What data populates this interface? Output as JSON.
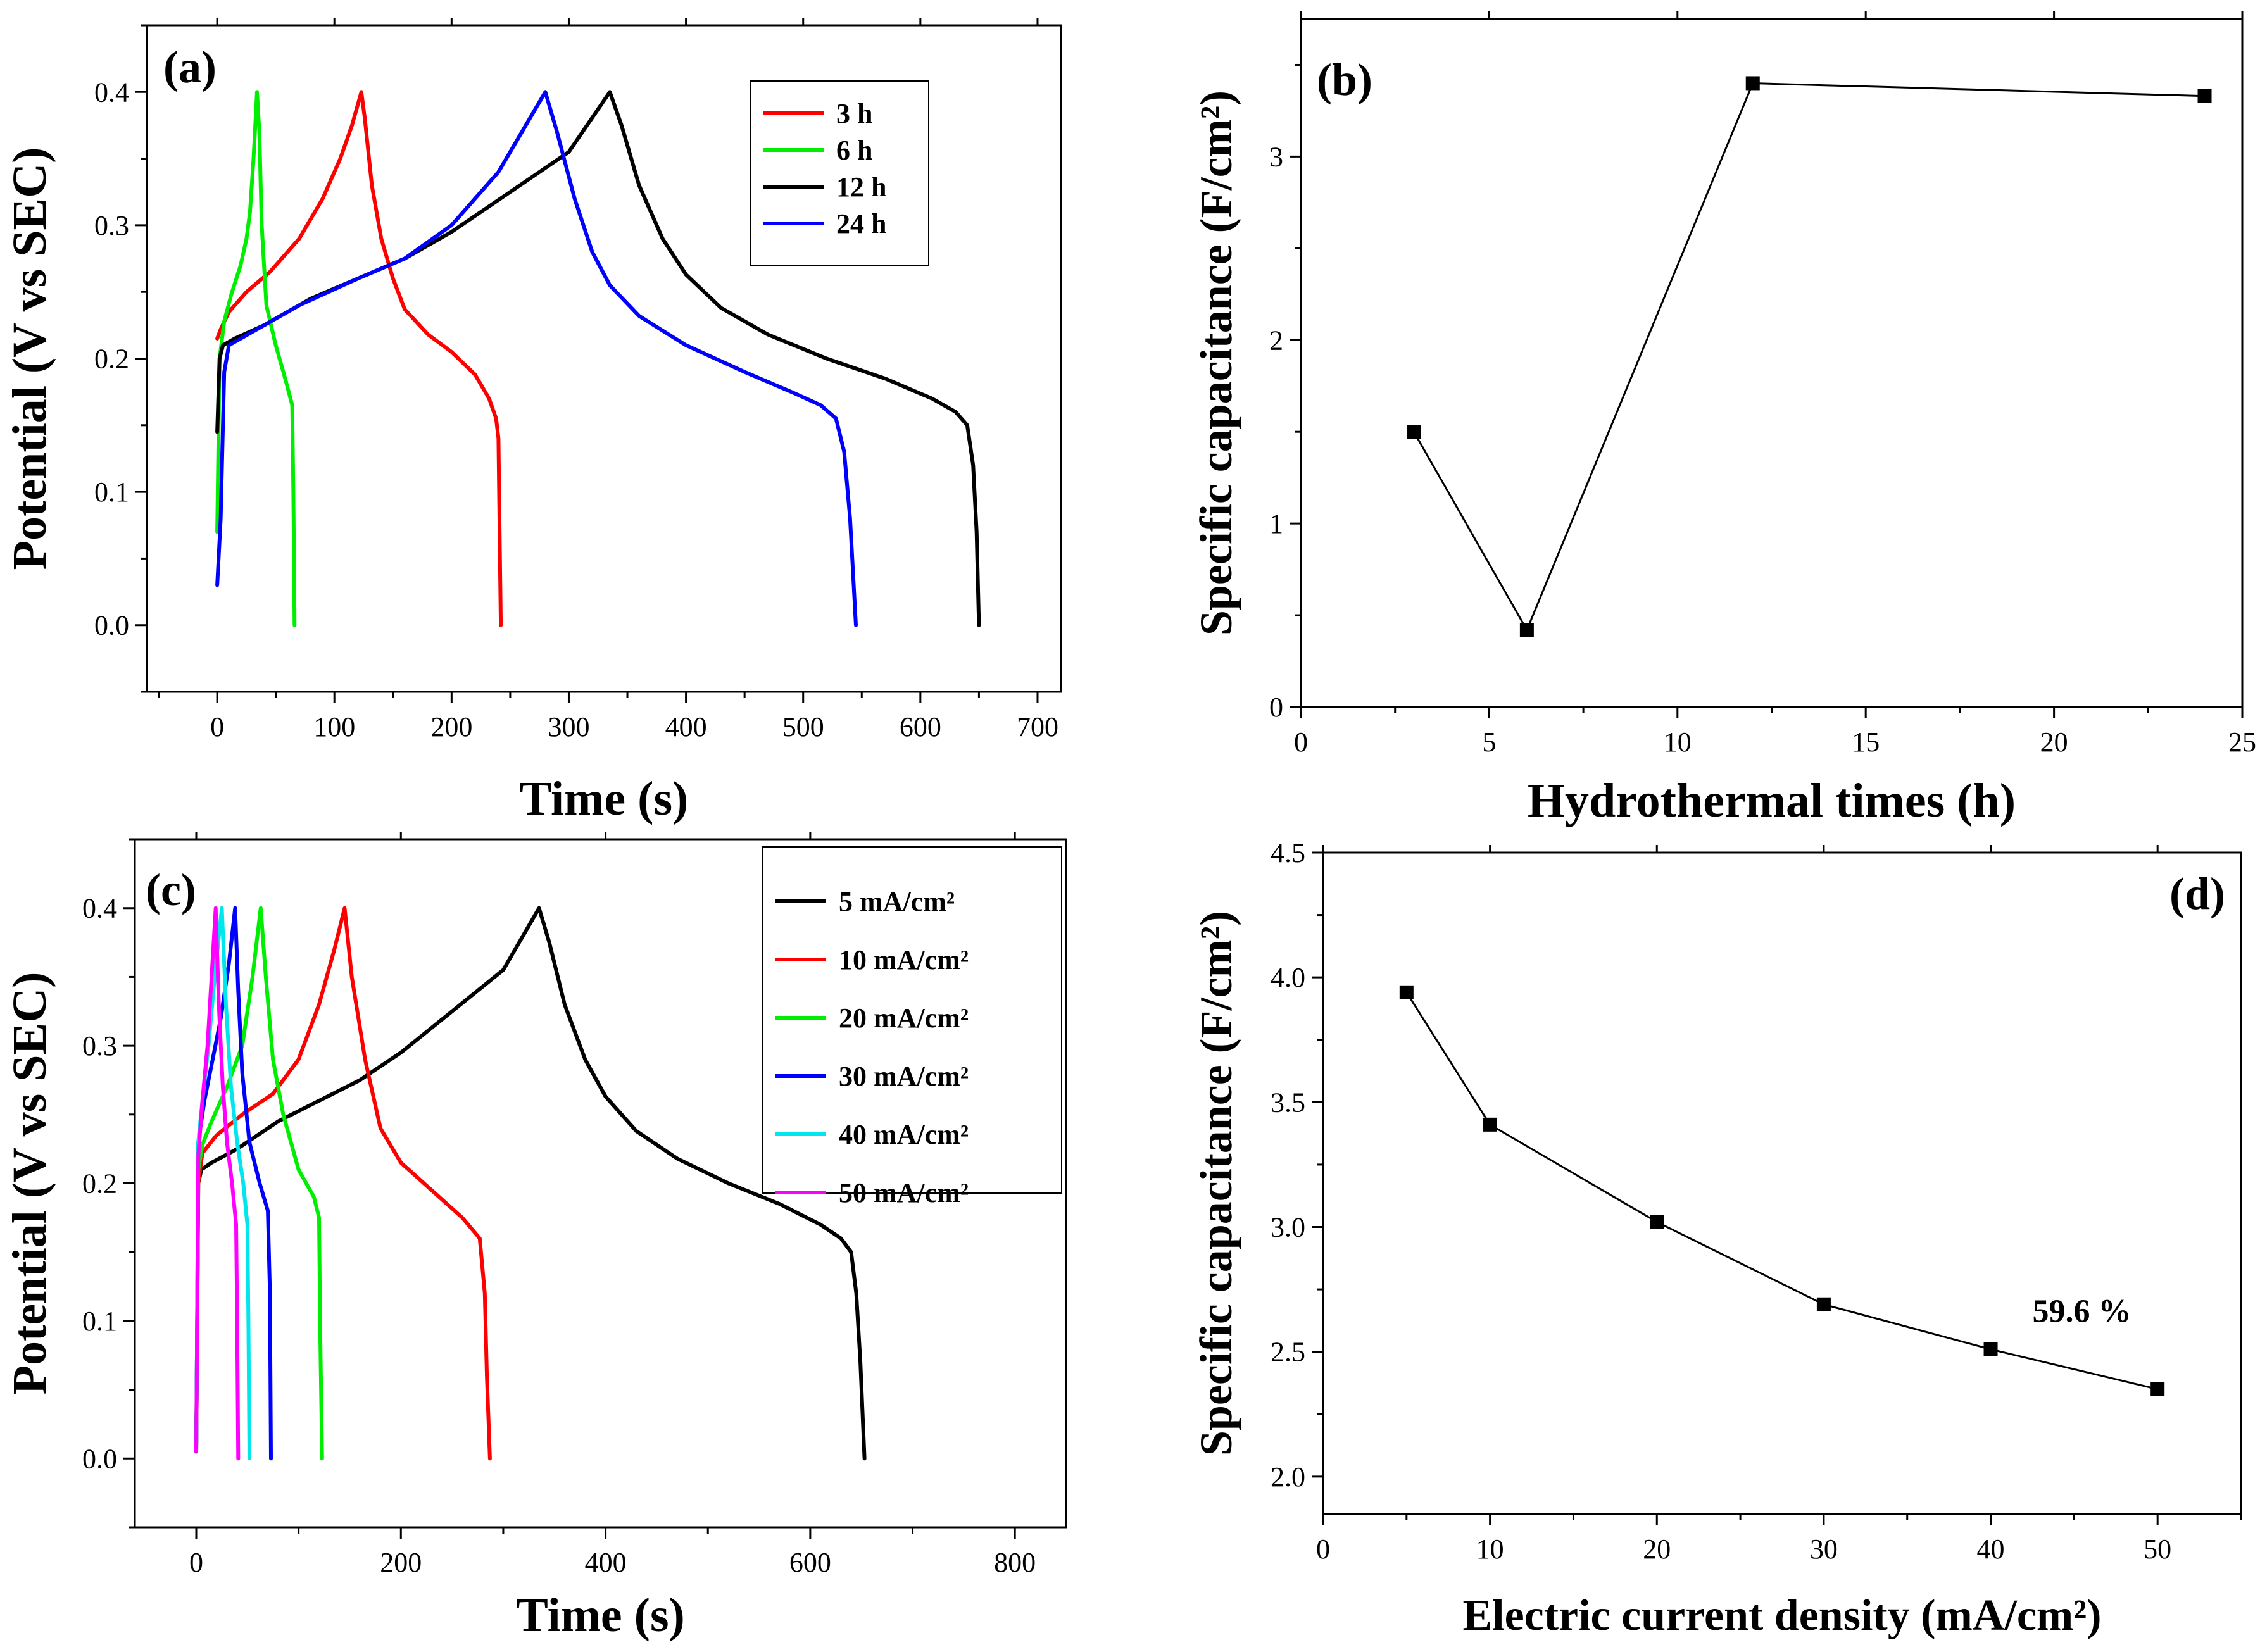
{
  "chart_data": [
    {
      "panel": "(a)",
      "type": "line",
      "xlabel": "Time (s)",
      "ylabel": "Potential (V vs SEC)",
      "xlim": [
        -60,
        720
      ],
      "ylim": [
        -0.05,
        0.45
      ],
      "xticks": [
        0,
        100,
        200,
        300,
        400,
        500,
        600,
        700
      ],
      "yticks": [
        0.0,
        0.1,
        0.2,
        0.3,
        0.4
      ],
      "legend_position": "top-right",
      "series": [
        {
          "name": "3 h",
          "color": "#ff0000",
          "points": [
            [
              0,
              0.215
            ],
            [
              3,
              0.222
            ],
            [
              10,
              0.235
            ],
            [
              25,
              0.25
            ],
            [
              45,
              0.265
            ],
            [
              70,
              0.29
            ],
            [
              90,
              0.32
            ],
            [
              105,
              0.35
            ],
            [
              115,
              0.375
            ],
            [
              123,
              0.4
            ],
            [
              126,
              0.38
            ],
            [
              132,
              0.33
            ],
            [
              140,
              0.29
            ],
            [
              150,
              0.26
            ],
            [
              160,
              0.237
            ],
            [
              180,
              0.218
            ],
            [
              200,
              0.205
            ],
            [
              220,
              0.188
            ],
            [
              232,
              0.17
            ],
            [
              238,
              0.155
            ],
            [
              240,
              0.14
            ],
            [
              241,
              0.07
            ],
            [
              242,
              0.0
            ]
          ]
        },
        {
          "name": "6 h",
          "color": "#00ee00",
          "points": [
            [
              0,
              0.07
            ],
            [
              2,
              0.2
            ],
            [
              6,
              0.228
            ],
            [
              12,
              0.248
            ],
            [
              20,
              0.27
            ],
            [
              25,
              0.29
            ],
            [
              28,
              0.31
            ],
            [
              31,
              0.35
            ],
            [
              34,
              0.4
            ],
            [
              36,
              0.37
            ],
            [
              38,
              0.3
            ],
            [
              42,
              0.24
            ],
            [
              50,
              0.21
            ],
            [
              58,
              0.185
            ],
            [
              64,
              0.165
            ],
            [
              65,
              0.1
            ],
            [
              66,
              0.0
            ]
          ]
        },
        {
          "name": "12 h",
          "color": "#000000",
          "points": [
            [
              0,
              0.145
            ],
            [
              2,
              0.2
            ],
            [
              5,
              0.21
            ],
            [
              15,
              0.215
            ],
            [
              40,
              0.225
            ],
            [
              80,
              0.245
            ],
            [
              120,
              0.26
            ],
            [
              160,
              0.275
            ],
            [
              200,
              0.295
            ],
            [
              250,
              0.325
            ],
            [
              300,
              0.355
            ],
            [
              335,
              0.4
            ],
            [
              345,
              0.375
            ],
            [
              360,
              0.33
            ],
            [
              380,
              0.29
            ],
            [
              400,
              0.263
            ],
            [
              430,
              0.238
            ],
            [
              470,
              0.218
            ],
            [
              520,
              0.2
            ],
            [
              570,
              0.185
            ],
            [
              610,
              0.17
            ],
            [
              630,
              0.16
            ],
            [
              640,
              0.15
            ],
            [
              645,
              0.12
            ],
            [
              648,
              0.07
            ],
            [
              650,
              0.0
            ]
          ]
        },
        {
          "name": "24 h",
          "color": "#0000ff",
          "points": [
            [
              0,
              0.03
            ],
            [
              3,
              0.08
            ],
            [
              6,
              0.19
            ],
            [
              10,
              0.21
            ],
            [
              30,
              0.22
            ],
            [
              70,
              0.24
            ],
            [
              120,
              0.26
            ],
            [
              160,
              0.275
            ],
            [
              200,
              0.3
            ],
            [
              240,
              0.34
            ],
            [
              280,
              0.4
            ],
            [
              290,
              0.37
            ],
            [
              305,
              0.32
            ],
            [
              320,
              0.28
            ],
            [
              335,
              0.255
            ],
            [
              360,
              0.232
            ],
            [
              400,
              0.21
            ],
            [
              450,
              0.19
            ],
            [
              490,
              0.175
            ],
            [
              515,
              0.165
            ],
            [
              528,
              0.155
            ],
            [
              535,
              0.13
            ],
            [
              540,
              0.08
            ],
            [
              545,
              0.0
            ]
          ]
        }
      ]
    },
    {
      "panel": "(b)",
      "type": "line",
      "xlabel": "Hydrothermal times (h)",
      "ylabel": "Specific capacitance (F/cm²)",
      "xlim": [
        0,
        25
      ],
      "ylim": [
        0,
        3.75
      ],
      "xticks": [
        0,
        5,
        10,
        15,
        20,
        25
      ],
      "yticks": [
        0,
        1,
        2,
        3
      ],
      "series": [
        {
          "name": "capacitance",
          "color": "#000000",
          "x": [
            3,
            6,
            12,
            24
          ],
          "values": [
            1.5,
            0.42,
            3.4,
            3.33
          ]
        }
      ]
    },
    {
      "panel": "(c)",
      "type": "line",
      "xlabel": "Time (s)",
      "ylabel": "Potential (V vs SEC)",
      "xlim": [
        -60,
        850
      ],
      "ylim": [
        -0.05,
        0.45
      ],
      "xticks": [
        0,
        200,
        400,
        600,
        800
      ],
      "yticks": [
        0.0,
        0.1,
        0.2,
        0.3,
        0.4
      ],
      "legend_position": "top-right",
      "series": [
        {
          "name": "5 mA/cm²",
          "color": "#000000",
          "points": [
            [
              0,
              0.005
            ],
            [
              2,
              0.2
            ],
            [
              5,
              0.21
            ],
            [
              15,
              0.215
            ],
            [
              40,
              0.225
            ],
            [
              80,
              0.245
            ],
            [
              120,
              0.26
            ],
            [
              160,
              0.275
            ],
            [
              200,
              0.295
            ],
            [
              250,
              0.325
            ],
            [
              300,
              0.355
            ],
            [
              335,
              0.4
            ],
            [
              345,
              0.375
            ],
            [
              360,
              0.33
            ],
            [
              380,
              0.29
            ],
            [
              400,
              0.263
            ],
            [
              430,
              0.238
            ],
            [
              470,
              0.218
            ],
            [
              520,
              0.2
            ],
            [
              570,
              0.185
            ],
            [
              610,
              0.17
            ],
            [
              630,
              0.16
            ],
            [
              640,
              0.15
            ],
            [
              645,
              0.12
            ],
            [
              649,
              0.07
            ],
            [
              653,
              0.0
            ]
          ]
        },
        {
          "name": "10 mA/cm²",
          "color": "#ff0000",
          "points": [
            [
              0,
              0.005
            ],
            [
              2,
              0.2
            ],
            [
              6,
              0.222
            ],
            [
              20,
              0.235
            ],
            [
              45,
              0.25
            ],
            [
              75,
              0.265
            ],
            [
              100,
              0.29
            ],
            [
              120,
              0.33
            ],
            [
              135,
              0.37
            ],
            [
              145,
              0.4
            ],
            [
              152,
              0.35
            ],
            [
              165,
              0.29
            ],
            [
              180,
              0.24
            ],
            [
              200,
              0.215
            ],
            [
              230,
              0.195
            ],
            [
              260,
              0.175
            ],
            [
              277,
              0.16
            ],
            [
              282,
              0.12
            ],
            [
              284,
              0.06
            ],
            [
              287,
              0.0
            ]
          ]
        },
        {
          "name": "20 mA/cm²",
          "color": "#00ee00",
          "points": [
            [
              0,
              0.01
            ],
            [
              2,
              0.21
            ],
            [
              6,
              0.228
            ],
            [
              15,
              0.245
            ],
            [
              30,
              0.27
            ],
            [
              45,
              0.3
            ],
            [
              55,
              0.35
            ],
            [
              63,
              0.4
            ],
            [
              68,
              0.35
            ],
            [
              75,
              0.29
            ],
            [
              85,
              0.25
            ],
            [
              100,
              0.21
            ],
            [
              115,
              0.19
            ],
            [
              120,
              0.175
            ],
            [
              121,
              0.1
            ],
            [
              123,
              0.0
            ]
          ]
        },
        {
          "name": "30 mA/cm²",
          "color": "#0000ff",
          "points": [
            [
              0,
              0.005
            ],
            [
              2,
              0.23
            ],
            [
              8,
              0.26
            ],
            [
              16,
              0.29
            ],
            [
              24,
              0.32
            ],
            [
              32,
              0.36
            ],
            [
              38,
              0.4
            ],
            [
              41,
              0.34
            ],
            [
              45,
              0.28
            ],
            [
              52,
              0.23
            ],
            [
              62,
              0.2
            ],
            [
              70,
              0.18
            ],
            [
              72,
              0.12
            ],
            [
              73,
              0.0
            ]
          ]
        },
        {
          "name": "40 mA/cm²",
          "color": "#00e5ee",
          "points": [
            [
              0,
              0.005
            ],
            [
              2,
              0.23
            ],
            [
              6,
              0.26
            ],
            [
              12,
              0.3
            ],
            [
              18,
              0.35
            ],
            [
              25,
              0.4
            ],
            [
              29,
              0.33
            ],
            [
              34,
              0.27
            ],
            [
              40,
              0.23
            ],
            [
              46,
              0.2
            ],
            [
              50,
              0.17
            ],
            [
              51,
              0.1
            ],
            [
              52,
              0.0
            ]
          ]
        },
        {
          "name": "50 mA/cm²",
          "color": "#ff00ff",
          "points": [
            [
              0,
              0.005
            ],
            [
              2,
              0.22
            ],
            [
              6,
              0.26
            ],
            [
              11,
              0.3
            ],
            [
              15,
              0.35
            ],
            [
              19,
              0.4
            ],
            [
              22,
              0.33
            ],
            [
              26,
              0.27
            ],
            [
              30,
              0.23
            ],
            [
              35,
              0.2
            ],
            [
              39,
              0.17
            ],
            [
              40,
              0.1
            ],
            [
              41,
              0.0
            ]
          ]
        }
      ]
    },
    {
      "panel": "(d)",
      "type": "line",
      "xlabel": "Electric current density (mA/cm²)",
      "ylabel": "Specific capacitance (F/cm²)",
      "xlim": [
        0,
        55
      ],
      "ylim": [
        1.85,
        4.5
      ],
      "xticks": [
        0,
        10,
        20,
        30,
        40,
        50
      ],
      "yticks": [
        2.0,
        2.5,
        3.0,
        3.5,
        4.0,
        4.5
      ],
      "annotation": "59.6 %",
      "series": [
        {
          "name": "capacitance",
          "color": "#000000",
          "x": [
            5,
            10,
            20,
            30,
            40,
            50
          ],
          "values": [
            3.94,
            3.41,
            3.02,
            2.69,
            2.51,
            2.35
          ]
        }
      ]
    }
  ]
}
